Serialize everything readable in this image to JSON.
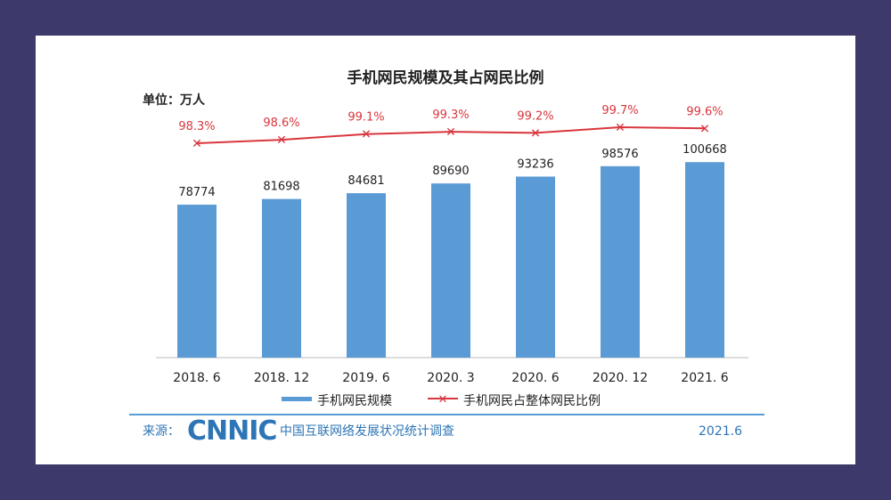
{
  "chart_data": {
    "type": "bar",
    "title": "手机网民规模及其占网民比例",
    "unit_label": "单位：万人",
    "categories": [
      "2018. 6",
      "2018. 12",
      "2019. 6",
      "2020. 3",
      "2020. 6",
      "2020. 12",
      "2021. 6"
    ],
    "series": [
      {
        "name": "手机网民规模",
        "type": "bar",
        "color": "#5b9bd5",
        "values": [
          78774,
          81698,
          84681,
          89690,
          93236,
          98576,
          100668
        ]
      },
      {
        "name": "手机网民占整体网民比例",
        "type": "line",
        "color": "#d9363e",
        "values": [
          98.3,
          98.6,
          99.1,
          99.3,
          99.2,
          99.7,
          99.6
        ],
        "labels": [
          "98.3%",
          "98.6%",
          "99.1%",
          "99.3%",
          "99.2%",
          "99.7%",
          "99.6%"
        ]
      }
    ],
    "legend": "bottom"
  },
  "footer": {
    "source_label": "来源：",
    "logo": "CNNIC",
    "org": "中国互联网络发展状况统计调查",
    "date": "2021.6"
  }
}
